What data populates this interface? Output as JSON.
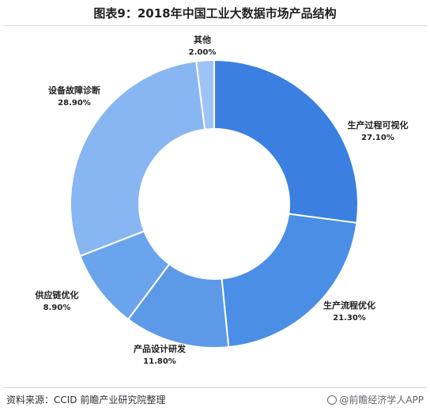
{
  "chart_data": {
    "type": "pie",
    "donut": true,
    "title": "图表9：2018年中国工业大数据市场产品结构",
    "slices": [
      {
        "label": "生产过程可视化",
        "value": 27.1,
        "value_label": "27.10%",
        "color": "#3b7fe0"
      },
      {
        "label": "生产流程优化",
        "value": 21.3,
        "value_label": "21.30%",
        "color": "#4a8ee6"
      },
      {
        "label": "产品设计研发",
        "value": 11.8,
        "value_label": "11.80%",
        "color": "#5c9ae8"
      },
      {
        "label": "供应链优化",
        "value": 8.9,
        "value_label": "8.90%",
        "color": "#6aa4ec"
      },
      {
        "label": "设备故障诊断",
        "value": 28.9,
        "value_label": "28.90%",
        "color": "#88b6f2"
      },
      {
        "label": "其他",
        "value": 2.0,
        "value_label": "2.00%",
        "color": "#9ec4f5"
      }
    ]
  },
  "footer": {
    "source": "资料来源：CCID 前瞻产业研究院整理",
    "brand": "@前瞻经济学人APP"
  }
}
